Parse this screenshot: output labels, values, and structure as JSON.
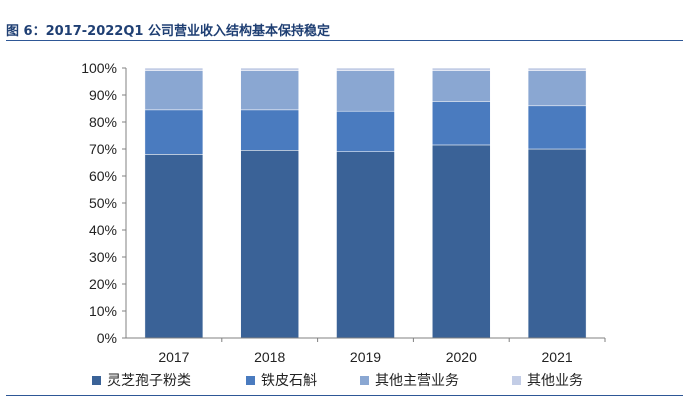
{
  "figure": {
    "title": "图 6：2017-2022Q1 公司营业收入结构基本保持稳定"
  },
  "chart_data": {
    "type": "bar",
    "stacked": true,
    "categories": [
      "2017",
      "2018",
      "2019",
      "2020",
      "2021"
    ],
    "y_ticks": [
      "0%",
      "10%",
      "20%",
      "30%",
      "40%",
      "50%",
      "60%",
      "70%",
      "80%",
      "90%",
      "100%"
    ],
    "ylim": [
      0,
      100
    ],
    "grid": false,
    "legend_position": "bottom",
    "series": [
      {
        "name": "灵芝孢子粉类",
        "color": "#3a6297",
        "values": [
          68,
          69.5,
          69,
          71.5,
          70
        ]
      },
      {
        "name": "铁皮石斛",
        "color": "#4a7bbf",
        "values": [
          16.5,
          15,
          15,
          16,
          16
        ]
      },
      {
        "name": "其他主营业务",
        "color": "#8aa7d2",
        "values": [
          14.5,
          14.5,
          15,
          11.5,
          13
        ]
      },
      {
        "name": "其他业务",
        "color": "#c3cde6",
        "values": [
          1,
          1,
          1,
          1,
          1
        ]
      }
    ],
    "title": "",
    "xlabel": "",
    "ylabel": ""
  }
}
